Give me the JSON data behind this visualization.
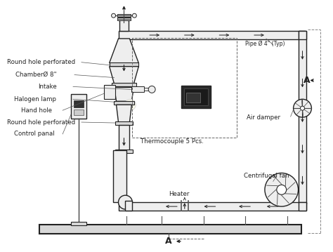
{
  "bg_color": "#ffffff",
  "line_color": "#444444",
  "dark_color": "#222222",
  "gray_fill": "#d8d8d8",
  "light_fill": "#eeeeee",
  "labels": {
    "round_hole_top": "Round hole perforated",
    "chamber": "ChamberØ 8\"",
    "intake": "Intake",
    "halogen": "Halogen lamp",
    "hand_hole": "Hand hole",
    "round_hole_bot": "Round hole perforated",
    "control": "Control panal",
    "thermocouple": "Thermocouple 5 Pcs.",
    "heater": "Heater",
    "centrifugal": "Centrifugal fan",
    "air_damper": "Air damper",
    "pipe": "Pipe Ø 4\" (Typ)"
  },
  "section_label": "A"
}
